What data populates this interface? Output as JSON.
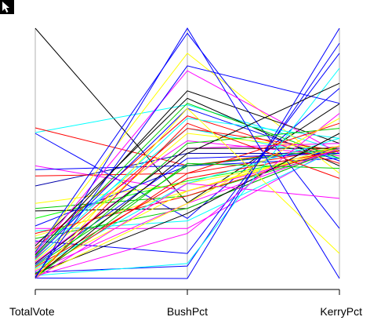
{
  "chart_data": {
    "type": "parallel-coordinates",
    "title": "",
    "variables": [
      "TotalVote",
      "BushPct",
      "KerryPct"
    ],
    "scale": "each axis scaled to its own min (bottom) to max (top), values as 0-1 fraction of range",
    "lines": [
      {
        "color": "#000000",
        "values": [
          1.0,
          0.302,
          0.698
        ]
      },
      {
        "color": "#00ffff",
        "values": [
          0.583,
          0.694,
          0.512
        ]
      },
      {
        "color": "#ff0000",
        "values": [
          0.602,
          0.451,
          0.528
        ]
      },
      {
        "color": "#0000ff",
        "values": [
          0.58,
          0.24,
          0.76
        ]
      },
      {
        "color": "#ff00ff",
        "values": [
          0.45,
          0.349,
          0.512
        ]
      },
      {
        "color": "#0000ff",
        "values": [
          0.435,
          0.451,
          0.512
        ]
      },
      {
        "color": "#0000aa",
        "values": [
          0.37,
          0.5,
          0.5
        ]
      },
      {
        "color": "#ff0000",
        "values": [
          0.41,
          0.42,
          0.52
        ]
      },
      {
        "color": "#00cc00",
        "values": [
          0.28,
          0.33,
          0.51
        ]
      },
      {
        "color": "#ffff00",
        "values": [
          0.3,
          0.38,
          0.5
        ]
      },
      {
        "color": "#00ff00",
        "values": [
          0.24,
          0.39,
          0.5
        ]
      },
      {
        "color": "#000000",
        "values": [
          0.27,
          0.28,
          0.52
        ]
      },
      {
        "color": "#0000ff",
        "values": [
          0.21,
          0.45,
          0.48
        ]
      },
      {
        "color": "#ff00ff",
        "values": [
          0.2,
          0.2,
          0.53
        ]
      },
      {
        "color": "#00ffff",
        "values": [
          0.19,
          0.23,
          0.52
        ]
      },
      {
        "color": "#ff0000",
        "values": [
          0.18,
          0.33,
          0.52
        ]
      },
      {
        "color": "#ffff00",
        "values": [
          0.17,
          0.35,
          0.52
        ]
      },
      {
        "color": "#00cc00",
        "values": [
          0.16,
          0.28,
          0.52
        ]
      },
      {
        "color": "#0000ff",
        "values": [
          0.15,
          0.1,
          0.9
        ]
      },
      {
        "color": "#ff00ff",
        "values": [
          0.14,
          0.55,
          0.49
        ]
      },
      {
        "color": "#000000",
        "values": [
          0.13,
          0.72,
          0.45
        ]
      },
      {
        "color": "#ff0000",
        "values": [
          0.12,
          0.65,
          0.46
        ]
      },
      {
        "color": "#00ffff",
        "values": [
          0.115,
          0.6,
          0.48
        ]
      },
      {
        "color": "#ffff00",
        "values": [
          0.11,
          0.9,
          0.42
        ]
      },
      {
        "color": "#0000ff",
        "values": [
          0.105,
          0.98,
          0.2
        ]
      },
      {
        "color": "#ff00ff",
        "values": [
          0.1,
          0.83,
          0.5
        ]
      },
      {
        "color": "#000000",
        "values": [
          0.095,
          0.75,
          0.54
        ]
      },
      {
        "color": "#00cc00",
        "values": [
          0.09,
          0.7,
          0.48
        ]
      },
      {
        "color": "#0000ff",
        "values": [
          0.085,
          0.68,
          0.47
        ]
      },
      {
        "color": "#ff0000",
        "values": [
          0.08,
          0.6,
          0.51
        ]
      },
      {
        "color": "#00ffff",
        "values": [
          0.075,
          0.64,
          0.56
        ]
      },
      {
        "color": "#ffff00",
        "values": [
          0.07,
          0.58,
          0.51
        ]
      },
      {
        "color": "#ff00ff",
        "values": [
          0.065,
          0.52,
          0.54
        ]
      },
      {
        "color": "#000000",
        "values": [
          0.06,
          0.52,
          0.52
        ]
      },
      {
        "color": "#0000ff",
        "values": [
          0.055,
          0.48,
          0.5
        ]
      },
      {
        "color": "#00cc00",
        "values": [
          0.05,
          0.45,
          0.52
        ]
      },
      {
        "color": "#ff0000",
        "values": [
          0.045,
          0.4,
          0.51
        ]
      },
      {
        "color": "#00ffff",
        "values": [
          0.04,
          0.38,
          0.56
        ]
      },
      {
        "color": "#ffff00",
        "values": [
          0.035,
          0.35,
          0.53
        ]
      },
      {
        "color": "#ff00ff",
        "values": [
          0.03,
          0.3,
          0.52
        ]
      },
      {
        "color": "#0000ff",
        "values": [
          0.025,
          0.05,
          0.94
        ]
      },
      {
        "color": "#000000",
        "values": [
          0.02,
          0.26,
          0.58
        ]
      },
      {
        "color": "#00cc00",
        "values": [
          0.018,
          0.54,
          0.6
        ]
      },
      {
        "color": "#ff0000",
        "values": [
          0.015,
          0.42,
          0.62
        ]
      },
      {
        "color": "#00ffff",
        "values": [
          0.012,
          0.06,
          0.84
        ]
      },
      {
        "color": "#ff00ff",
        "values": [
          0.01,
          0.18,
          0.66
        ]
      },
      {
        "color": "#ffff00",
        "values": [
          0.008,
          0.3,
          0.64
        ]
      },
      {
        "color": "#0000ff",
        "values": [
          0.006,
          0.85,
          0.7
        ]
      },
      {
        "color": "#000000",
        "values": [
          0.005,
          0.5,
          0.78
        ]
      },
      {
        "color": "#00cc00",
        "values": [
          0.004,
          0.46,
          0.44
        ]
      },
      {
        "color": "#ff0000",
        "values": [
          0.003,
          0.62,
          0.4
        ]
      },
      {
        "color": "#0000ff",
        "values": [
          0.002,
          0.0,
          1.0
        ]
      },
      {
        "color": "#ff00ff",
        "values": [
          0.001,
          0.38,
          0.32
        ]
      },
      {
        "color": "#ffff00",
        "values": [
          0.0,
          0.68,
          0.1
        ]
      },
      {
        "color": "#0000ff",
        "values": [
          0.0,
          1.0,
          0.0
        ]
      }
    ]
  }
}
